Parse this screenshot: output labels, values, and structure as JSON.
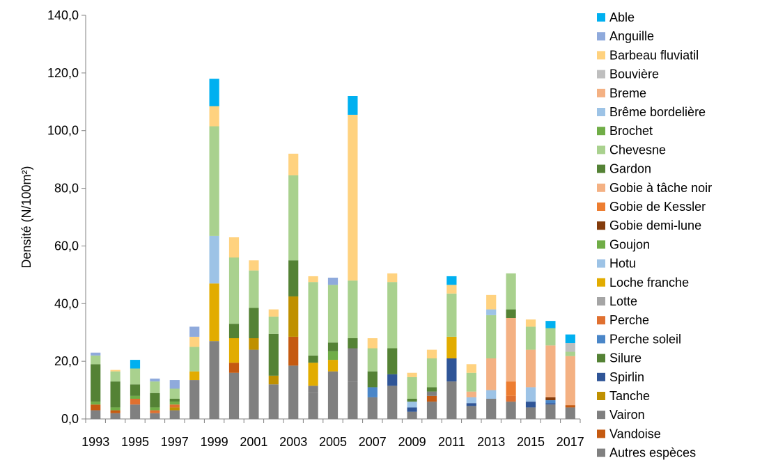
{
  "chart_data": {
    "type": "bar",
    "stacked": true,
    "ylabel": "Densité (N/100m²)",
    "ylim": [
      0,
      140
    ],
    "yticks": [
      "0,0",
      "20,0",
      "40,0",
      "60,0",
      "80,0",
      "100,0",
      "120,0",
      "140,0"
    ],
    "grid": false,
    "legend_position": "right",
    "categories": [
      "1993",
      "1994",
      "1995",
      "1996",
      "1997",
      "1998",
      "1999",
      "2000",
      "2001",
      "2002",
      "2003",
      "2004",
      "2005",
      "2006",
      "2007",
      "2008",
      "2009",
      "2010",
      "2011",
      "2012",
      "2013",
      "2014",
      "2015",
      "2016",
      "2017"
    ],
    "x_tick_labels": [
      "1993",
      "1995",
      "1997",
      "1999",
      "2001",
      "2003",
      "2005",
      "2007",
      "2009",
      "2011",
      "2013",
      "2015",
      "2017"
    ],
    "series": [
      {
        "name": "Autres espèces",
        "color": "#808080",
        "values": [
          3,
          2,
          5,
          2,
          3,
          13.5,
          27,
          16,
          24,
          12,
          18.5,
          9,
          16.5,
          13,
          7.5,
          11.5,
          2.5,
          6,
          13,
          4.5,
          7,
          6,
          4,
          5,
          4
        ]
      },
      {
        "name": "Vandoise",
        "color": "#c55a11",
        "values": [
          2,
          1,
          0,
          0,
          0,
          0,
          0,
          3.5,
          0,
          0,
          10,
          0,
          0,
          0,
          0,
          0,
          0,
          2,
          0,
          0,
          0,
          0,
          0,
          0,
          0.8
        ]
      },
      {
        "name": "Vairon",
        "color": "#7f7f7f",
        "values": [
          0,
          0,
          0,
          0,
          0,
          0,
          0,
          0,
          0,
          0,
          0,
          2.5,
          0,
          11.5,
          0,
          0,
          0,
          1.5,
          0,
          0,
          0,
          0,
          0,
          0,
          0
        ]
      },
      {
        "name": "Tanche",
        "color": "#bf9000",
        "values": [
          0,
          0,
          0,
          0,
          1,
          0,
          0,
          0,
          4,
          3,
          14,
          0,
          0,
          0,
          0,
          0,
          0,
          0,
          0,
          0,
          0,
          0,
          0,
          0,
          0
        ]
      },
      {
        "name": "Spirlin",
        "color": "#2f5597",
        "values": [
          0,
          0,
          0,
          0,
          0,
          0,
          0,
          0,
          0,
          0,
          0,
          0,
          0,
          0,
          0,
          4,
          1.5,
          0,
          8,
          1,
          0,
          0,
          2,
          0.5,
          0
        ]
      },
      {
        "name": "Silure",
        "color": "#548235",
        "values": [
          0,
          0,
          0,
          0,
          0,
          0,
          0,
          0,
          0,
          0,
          0,
          0,
          0,
          0,
          0,
          0,
          0,
          0,
          0,
          0,
          0,
          0,
          0,
          0,
          0
        ]
      },
      {
        "name": "Perche soleil",
        "color": "#4a86c8",
        "values": [
          0,
          0,
          0,
          0,
          0,
          0,
          0,
          0,
          0,
          0,
          0,
          0,
          0,
          0,
          3.5,
          0,
          0,
          0,
          0,
          0,
          0,
          0,
          0,
          1,
          0
        ]
      },
      {
        "name": "Perche",
        "color": "#e07030",
        "values": [
          0,
          0,
          2,
          1,
          1,
          0,
          0,
          0,
          0,
          0,
          0,
          0,
          0,
          0,
          0,
          0,
          0,
          0,
          0,
          0,
          0,
          2,
          0,
          0,
          0
        ]
      },
      {
        "name": "Lotte",
        "color": "#a5a5a5",
        "values": [
          0,
          0,
          0,
          0,
          0,
          0,
          0,
          0,
          0,
          0,
          0,
          0,
          0,
          0,
          0,
          0,
          0,
          0,
          0,
          0,
          0,
          0,
          0,
          0,
          0
        ]
      },
      {
        "name": "Loche franche",
        "color": "#e2ac00",
        "values": [
          0,
          0,
          0,
          0,
          0,
          3,
          20,
          8.5,
          0,
          0,
          0,
          8,
          4,
          0,
          0,
          0,
          0,
          0,
          7.5,
          0,
          0,
          0,
          0,
          0,
          0
        ]
      },
      {
        "name": "Hotu",
        "color": "#9dc3e6",
        "values": [
          0,
          0,
          0,
          0,
          0,
          0,
          16.5,
          0,
          0,
          0,
          0,
          0,
          0,
          0,
          0,
          0,
          2,
          0,
          0,
          2,
          3,
          0,
          5,
          0,
          0
        ]
      },
      {
        "name": "Goujon",
        "color": "#70ad47",
        "values": [
          1,
          1,
          1,
          1,
          1,
          0,
          0,
          0,
          0,
          0,
          0,
          0,
          3,
          0,
          0,
          0,
          0,
          0,
          0,
          0,
          0,
          0,
          0,
          0,
          0
        ]
      },
      {
        "name": "Gobie demi-lune",
        "color": "#843c0c",
        "values": [
          0,
          0,
          0,
          0,
          0,
          0,
          0,
          0,
          0,
          0,
          0,
          0,
          0,
          0,
          0,
          0,
          0,
          0,
          0,
          0,
          0,
          0,
          0,
          1,
          0
        ]
      },
      {
        "name": "Gobie de Kessler",
        "color": "#ed7d31",
        "values": [
          0,
          0,
          0,
          0,
          0,
          0,
          0,
          0,
          0,
          0,
          0,
          0,
          0,
          0,
          0,
          0,
          0,
          0,
          0,
          0,
          0,
          5,
          0,
          0,
          0
        ]
      },
      {
        "name": "Gobie à tâche noir",
        "color": "#f4b183",
        "values": [
          0,
          0,
          0,
          0,
          0,
          0,
          0,
          0,
          0,
          0,
          0,
          0,
          0,
          0,
          0,
          0,
          0,
          0,
          0,
          2,
          11,
          22,
          13,
          18,
          17
        ]
      },
      {
        "name": "Gardon",
        "color": "#548235",
        "values": [
          13,
          9,
          4,
          5,
          1,
          0,
          0,
          5,
          10.5,
          14.5,
          12.5,
          2.5,
          3,
          3.5,
          5.5,
          9,
          1,
          1.5,
          0,
          0,
          0,
          3,
          0,
          0,
          0
        ]
      },
      {
        "name": "Chevesne",
        "color": "#a9d18e",
        "values": [
          3,
          3.5,
          5.5,
          4,
          3.5,
          8.5,
          38,
          23,
          13,
          6,
          29.5,
          25.5,
          20,
          20,
          8,
          23,
          7.5,
          10,
          15,
          6.5,
          15,
          12.5,
          8,
          6,
          1.5
        ]
      },
      {
        "name": "Brochet",
        "color": "#70ad47",
        "values": [
          0,
          0,
          0,
          0,
          0,
          0,
          0,
          0,
          0,
          0,
          0,
          0,
          0,
          0,
          0,
          0,
          0,
          0,
          0,
          0,
          0,
          0,
          0,
          0,
          0
        ]
      },
      {
        "name": "Brême bordelière",
        "color": "#9dc3e6",
        "values": [
          0,
          0,
          0,
          0,
          0,
          0,
          0,
          0,
          0,
          0,
          0,
          0,
          0,
          0,
          0,
          0,
          0,
          0,
          0,
          0,
          2,
          0,
          0,
          0,
          0
        ]
      },
      {
        "name": "Breme",
        "color": "#f4b183",
        "values": [
          0,
          0,
          0,
          0,
          0,
          0,
          0,
          0,
          0,
          0,
          0,
          0,
          0,
          0,
          0,
          0,
          0,
          0,
          0,
          0,
          0,
          0,
          0,
          0,
          0
        ]
      },
      {
        "name": "Bouvière",
        "color": "#bfbfbf",
        "values": [
          0,
          0,
          0,
          0,
          0,
          0,
          0,
          0,
          0,
          0,
          0,
          0,
          0,
          0,
          0,
          0,
          0,
          0,
          0,
          0,
          0,
          0,
          0,
          0,
          3
        ]
      },
      {
        "name": "Barbeau fluviatil",
        "color": "#ffd27f",
        "values": [
          0,
          0.5,
          0,
          0,
          0,
          3.5,
          7,
          7,
          3.5,
          2.5,
          7.5,
          2,
          0,
          57.5,
          3.5,
          3,
          1.5,
          3,
          3,
          3,
          5,
          0,
          2.5,
          0,
          0
        ]
      },
      {
        "name": "Anguille",
        "color": "#8faadc",
        "values": [
          1,
          0,
          0,
          1,
          3,
          3.5,
          0,
          0,
          0,
          0,
          0,
          0,
          2.5,
          0,
          0,
          0,
          0,
          0,
          0,
          0,
          0,
          0,
          0,
          0,
          0
        ]
      },
      {
        "name": "Able",
        "color": "#00b0f0",
        "values": [
          0,
          0,
          3,
          0,
          0,
          0,
          9.5,
          0,
          0,
          0,
          0,
          0,
          0,
          6.5,
          0,
          0,
          0,
          0,
          3,
          0,
          0,
          0,
          0,
          2.5,
          3
        ]
      }
    ],
    "legend_order": [
      "Able",
      "Anguille",
      "Barbeau fluviatil",
      "Bouvière",
      "Breme",
      "Brême bordelière",
      "Brochet",
      "Chevesne",
      "Gardon",
      "Gobie à tâche noir",
      "Gobie de Kessler",
      "Gobie demi-lune",
      "Goujon",
      "Hotu",
      "Loche franche",
      "Lotte",
      "Perche",
      "Perche soleil",
      "Silure",
      "Spirlin",
      "Tanche",
      "Vairon",
      "Vandoise",
      "Autres espèces"
    ]
  }
}
